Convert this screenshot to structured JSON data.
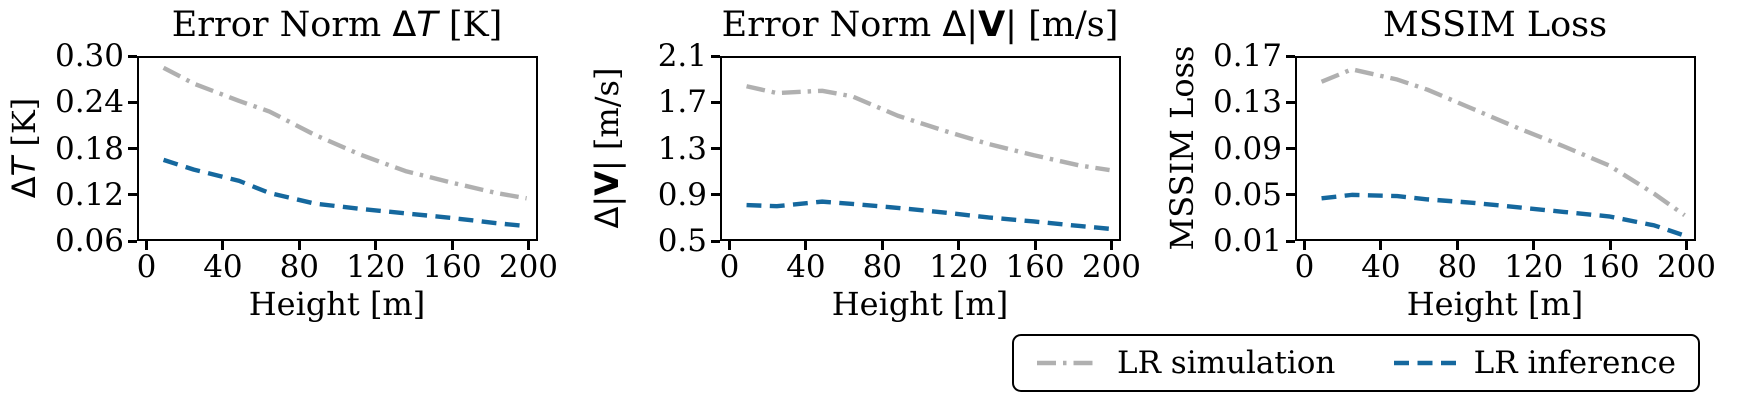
{
  "figure": {
    "background": "#ffffff",
    "text_color": "#000000"
  },
  "chart_data": [
    {
      "type": "line",
      "title": "Error Norm ΔT [K]",
      "title_runs": [
        {
          "text": "Error Norm ",
          "style": "serif"
        },
        {
          "text": "Δ",
          "style": "sans"
        },
        {
          "text": "T",
          "style": "sans-italic"
        },
        {
          "text": " [K]",
          "style": "serif"
        }
      ],
      "ylabel": "ΔT [K]",
      "ylabel_runs": [
        {
          "text": "Δ",
          "style": "sans"
        },
        {
          "text": "T",
          "style": "sans-italic"
        },
        {
          "text": " [K]",
          "style": "serif"
        }
      ],
      "xlabel": "Height [m]",
      "x": [
        8,
        24,
        48,
        64,
        88,
        112,
        136,
        160,
        184,
        200
      ],
      "series": [
        {
          "name": "LR simulation",
          "color": "#b0b0b0",
          "dash": "dashdot",
          "values": [
            0.287,
            0.266,
            0.243,
            0.229,
            0.198,
            0.172,
            0.15,
            0.135,
            0.121,
            0.114
          ]
        },
        {
          "name": "LR inference",
          "color": "#15689e",
          "dash": "dashed",
          "values": [
            0.165,
            0.152,
            0.137,
            0.121,
            0.107,
            0.1,
            0.094,
            0.088,
            0.081,
            0.077
          ]
        }
      ],
      "xlim": [
        -5,
        205
      ],
      "ylim": [
        0.06,
        0.3
      ],
      "xtick_vals": [
        0,
        40,
        80,
        120,
        160,
        200
      ],
      "xtick_labels": [
        "0",
        "40",
        "80",
        "120",
        "160",
        "200"
      ],
      "ytick_vals": [
        0.06,
        0.12,
        0.18,
        0.24,
        0.3
      ],
      "ytick_labels": [
        "0.06",
        "0.12",
        "0.18",
        "0.24",
        "0.30"
      ],
      "grid": false
    },
    {
      "type": "line",
      "title": "Error Norm Δ|V| [m/s]",
      "title_runs": [
        {
          "text": "Error Norm ",
          "style": "serif"
        },
        {
          "text": "Δ|",
          "style": "sans"
        },
        {
          "text": "V",
          "style": "sans-bold"
        },
        {
          "text": "|",
          "style": "sans"
        },
        {
          "text": " [m/s]",
          "style": "serif"
        }
      ],
      "ylabel": "Δ|V| [m/s]",
      "ylabel_runs": [
        {
          "text": "Δ|",
          "style": "sans"
        },
        {
          "text": "V",
          "style": "sans-bold"
        },
        {
          "text": "|",
          "style": "sans"
        },
        {
          "text": " [m/s]",
          "style": "serif"
        }
      ],
      "xlabel": "Height [m]",
      "x": [
        8,
        24,
        48,
        64,
        88,
        112,
        136,
        160,
        184,
        200
      ],
      "series": [
        {
          "name": "LR simulation",
          "color": "#b0b0b0",
          "dash": "dashdot",
          "values": [
            1.85,
            1.79,
            1.81,
            1.76,
            1.59,
            1.46,
            1.34,
            1.24,
            1.15,
            1.11
          ]
        },
        {
          "name": "LR inference",
          "color": "#15689e",
          "dash": "dashed",
          "values": [
            0.8,
            0.79,
            0.83,
            0.81,
            0.775,
            0.735,
            0.69,
            0.655,
            0.615,
            0.59
          ]
        }
      ],
      "xlim": [
        -5,
        205
      ],
      "ylim": [
        0.5,
        2.1
      ],
      "xtick_vals": [
        0,
        40,
        80,
        120,
        160,
        200
      ],
      "xtick_labels": [
        "0",
        "40",
        "80",
        "120",
        "160",
        "200"
      ],
      "ytick_vals": [
        0.5,
        0.9,
        1.3,
        1.7,
        2.1
      ],
      "ytick_labels": [
        "0.5",
        "0.9",
        "1.3",
        "1.7",
        "2.1"
      ],
      "grid": false
    },
    {
      "type": "line",
      "title": "MSSIM Loss",
      "title_runs": [
        {
          "text": "MSSIM Loss",
          "style": "serif"
        }
      ],
      "ylabel": "MSSIM Loss",
      "ylabel_runs": [
        {
          "text": "MSSIM Loss",
          "style": "serif"
        }
      ],
      "xlabel": "Height [m]",
      "x": [
        8,
        24,
        48,
        64,
        88,
        112,
        136,
        160,
        184,
        200
      ],
      "series": [
        {
          "name": "LR simulation",
          "color": "#b0b0b0",
          "dash": "dashdot",
          "values": [
            0.149,
            0.16,
            0.151,
            0.142,
            0.125,
            0.108,
            0.092,
            0.075,
            0.05,
            0.031
          ]
        },
        {
          "name": "LR inference",
          "color": "#15689e",
          "dash": "dashed",
          "values": [
            0.046,
            0.049,
            0.048,
            0.045,
            0.042,
            0.038,
            0.034,
            0.03,
            0.022,
            0.013
          ]
        }
      ],
      "xlim": [
        -5,
        205
      ],
      "ylim": [
        0.01,
        0.17
      ],
      "xtick_vals": [
        0,
        40,
        80,
        120,
        160,
        200
      ],
      "xtick_labels": [
        "0",
        "40",
        "80",
        "120",
        "160",
        "200"
      ],
      "ytick_vals": [
        0.01,
        0.05,
        0.09,
        0.13,
        0.17
      ],
      "ytick_labels": [
        "0.01",
        "0.05",
        "0.09",
        "0.13",
        "0.17"
      ],
      "grid": false
    }
  ],
  "legend": {
    "position": "bottom-right",
    "items": [
      {
        "label": "LR simulation",
        "color": "#b0b0b0",
        "dash": "dashdot"
      },
      {
        "label": "LR inference",
        "color": "#15689e",
        "dash": "dashed"
      }
    ]
  }
}
